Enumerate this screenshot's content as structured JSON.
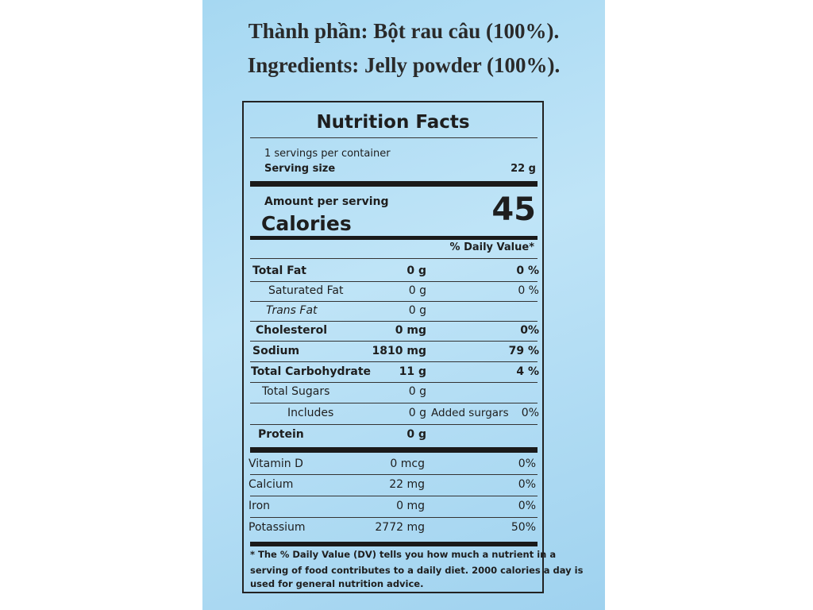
{
  "ingredients": [
    "Thành phần: Bột rau câu (100%).",
    "Ingredients: Jelly powder (100%)."
  ],
  "label": {
    "title": "Nutrition Facts",
    "servings": "1 servings per container",
    "serving_size_label": "Serving size",
    "serving_size": "22 g",
    "amount_per_serving": "Amount per serving",
    "calories_label": "Calories",
    "calories": "45",
    "dv_header": "% Daily Value*",
    "nutrients": [
      {
        "name": "Total Fat",
        "amount": "0 g",
        "dv": "0 %"
      },
      {
        "name": "Saturated Fat",
        "amount": "0 g",
        "dv": "0 %"
      },
      {
        "name": "Trans Fat",
        "amount": "0 g"
      },
      {
        "name": "Cholesterol",
        "amount": "0 mg",
        "dv": "0%"
      },
      {
        "name": "Sodium",
        "amount": "1810 mg",
        "dv": "79 %"
      },
      {
        "name": "Total Carbohydrate",
        "amount": "11 g",
        "dv": "4 %"
      },
      {
        "name": "Total Sugars",
        "amount": "0 g"
      },
      {
        "name": "Includes",
        "amount": "0 g",
        "note": "Added surgars",
        "dv": "0%"
      },
      {
        "name": "Protein",
        "amount": "0 g"
      }
    ],
    "vitamins": [
      {
        "name": "Vitamin D",
        "amount": "0 mcg",
        "dv": "0%"
      },
      {
        "name": "Calcium",
        "amount": "22 mg",
        "dv": "0%"
      },
      {
        "name": "Iron",
        "amount": "0 mg",
        "dv": "0%"
      },
      {
        "name": "Potassium",
        "amount": "2772 mg",
        "dv": "50%"
      }
    ],
    "footnote": [
      "* The % Daily Value (DV) tells you how much a nutrient in a",
      "serving of food contributes to a daily diet. 2000 calories a day is",
      "used for general nutrition advice."
    ]
  }
}
